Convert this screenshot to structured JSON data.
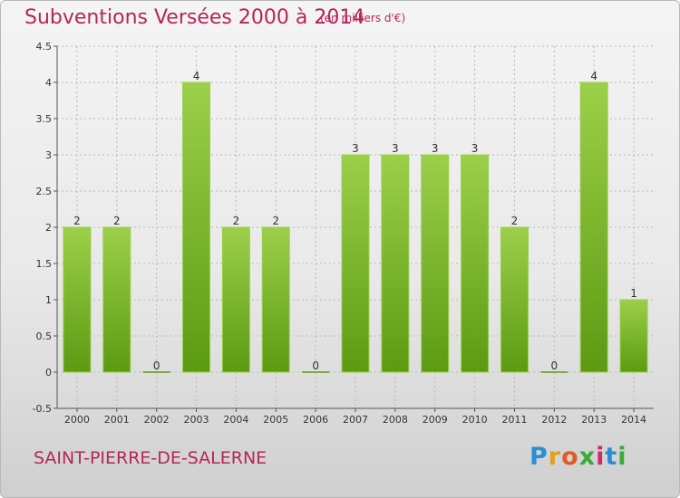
{
  "header": {
    "title": "Subventions Versées 2000 à 2014",
    "subtitle": "(en milliers d'€)"
  },
  "footer": {
    "place": "SAINT-PIERRE-DE-SALERNE",
    "logo_letters": [
      "P",
      "r",
      "o",
      "x",
      "i",
      "t",
      "i"
    ],
    "logo_colors": [
      "#2a8fd0",
      "#e0a020",
      "#e05a2a",
      "#3aaa3a",
      "#d02a6a",
      "#2a8fd0",
      "#3aaa3a"
    ]
  },
  "colors": {
    "title": "#b5255a",
    "bar_light": "#9ccf4a",
    "bar_dark": "#5c9a12",
    "grid": "#b8b8b8"
  },
  "chart_data": {
    "type": "bar",
    "title": "Subventions Versées 2000 à 2014",
    "subtitle": "(en milliers d'€)",
    "categories": [
      "2000",
      "2001",
      "2002",
      "2003",
      "2004",
      "2005",
      "2006",
      "2007",
      "2008",
      "2009",
      "2010",
      "2011",
      "2012",
      "2013",
      "2014"
    ],
    "values": [
      2,
      2,
      0,
      4,
      2,
      2,
      0,
      3,
      3,
      3,
      3,
      2,
      0,
      4,
      1
    ],
    "yticks": [
      "-0.5",
      "0",
      "0.5",
      "1",
      "1.5",
      "2",
      "2.5",
      "3",
      "3.5",
      "4",
      "4.5"
    ],
    "ylim": [
      -0.5,
      4.5
    ],
    "grid": true,
    "grid_axis": "y"
  }
}
